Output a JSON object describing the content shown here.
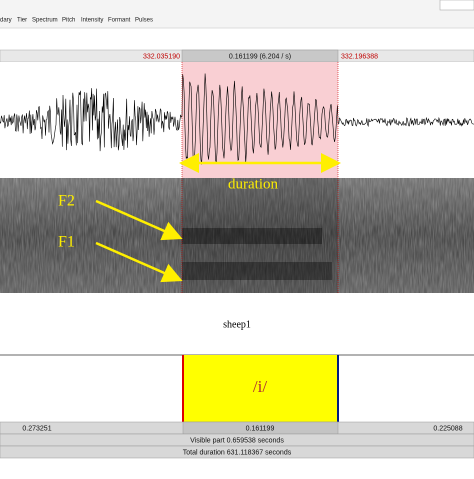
{
  "menu": [
    "dary",
    "Tier",
    "Spectrum",
    "Pitch",
    "Intensity",
    "Formant",
    "Pulses"
  ],
  "selection_bar": {
    "start": "332.035190",
    "duration": "0.161199 (6.204 / s)",
    "end": "332.196388"
  },
  "annotations": {
    "duration": "duration",
    "f2": "F2",
    "f1": "F1"
  },
  "tier": {
    "name": "sheep1",
    "interval": "/i/"
  },
  "bottom_bar": {
    "left": "0.273251",
    "middle": "0.161199",
    "right": "0.225088",
    "visible": "Visible part 0.659538 seconds",
    "total": "Total duration 631.118367 seconds"
  }
}
